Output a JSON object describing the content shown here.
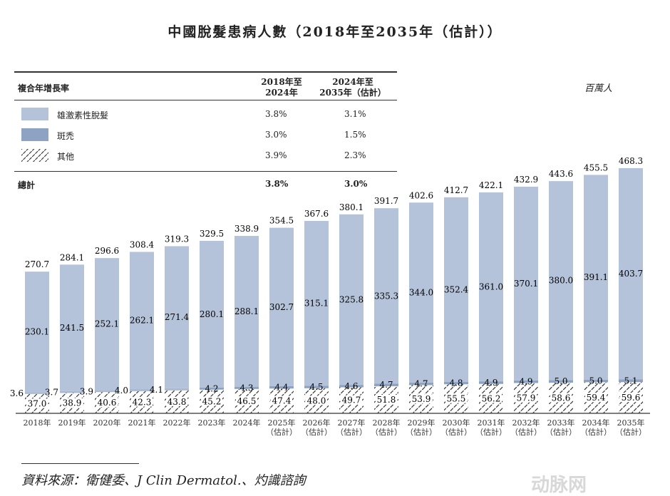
{
  "title": "中國脫髮患病人數（2018年至2035年（估計））",
  "unit": "百萬人",
  "cagr_table": {
    "header": "複合年增長率",
    "col1": [
      "2018年至",
      "2024年"
    ],
    "col2": [
      "2024年至",
      "2035年（估計）"
    ],
    "rows": [
      {
        "label": "雄激素性脫髮",
        "c1": "3.8%",
        "c2": "3.1%",
        "swatch": "solid-light"
      },
      {
        "label": "斑禿",
        "c1": "3.0%",
        "c2": "1.5%",
        "swatch": "solid-dark"
      },
      {
        "label": "其他",
        "c1": "3.9%",
        "c2": "2.3%",
        "swatch": "hatched"
      }
    ],
    "total": {
      "label": "總計",
      "c1": "3.8%",
      "c2": "3.0%"
    }
  },
  "source": "資料來源：衛健委、J Clin Dermatol.、灼識諮詢",
  "watermark": "动脉网",
  "colors": {
    "androgenetic": "#b4c3d9",
    "areata": "#8ea3c4",
    "axis": "#555555"
  },
  "chart_data": {
    "type": "bar",
    "stacked": true,
    "categories": [
      "2018年",
      "2019年",
      "2020年",
      "2021年",
      "2022年",
      "2023年",
      "2024年",
      "2025年\n（估計）",
      "2026年\n（估計）",
      "2027年\n（估計）",
      "2028年\n（估計）",
      "2029年\n（估計）",
      "2030年\n（估計）",
      "2031年\n（估計）",
      "2032年\n（估計）",
      "2033年\n（估計）",
      "2034年\n（估計）",
      "2035年\n（估計）"
    ],
    "series": [
      {
        "name": "其他",
        "values": [
          37.0,
          38.9,
          40.6,
          42.3,
          43.8,
          45.2,
          46.5,
          47.4,
          48.0,
          49.7,
          51.8,
          53.9,
          55.5,
          56.2,
          57.9,
          58.6,
          59.4,
          59.6
        ]
      },
      {
        "name": "斑禿",
        "values": [
          3.6,
          3.7,
          3.9,
          4.0,
          4.1,
          4.2,
          4.3,
          4.4,
          4.5,
          4.6,
          4.7,
          4.7,
          4.8,
          4.9,
          4.9,
          5.0,
          5.0,
          5.1
        ]
      },
      {
        "name": "雄激素性脫髮",
        "values": [
          230.1,
          241.5,
          252.1,
          262.1,
          271.4,
          280.1,
          288.1,
          302.7,
          315.1,
          325.8,
          335.3,
          344.0,
          352.4,
          361.0,
          370.1,
          380.0,
          391.1,
          403.7
        ]
      }
    ],
    "totals": [
      270.7,
      284.1,
      296.6,
      308.4,
      319.3,
      329.5,
      338.9,
      354.5,
      367.6,
      380.1,
      391.7,
      402.6,
      412.7,
      422.1,
      432.9,
      443.6,
      455.5,
      468.3
    ],
    "ylim": [
      0,
      480
    ],
    "grid": false,
    "legend": "top-left"
  }
}
